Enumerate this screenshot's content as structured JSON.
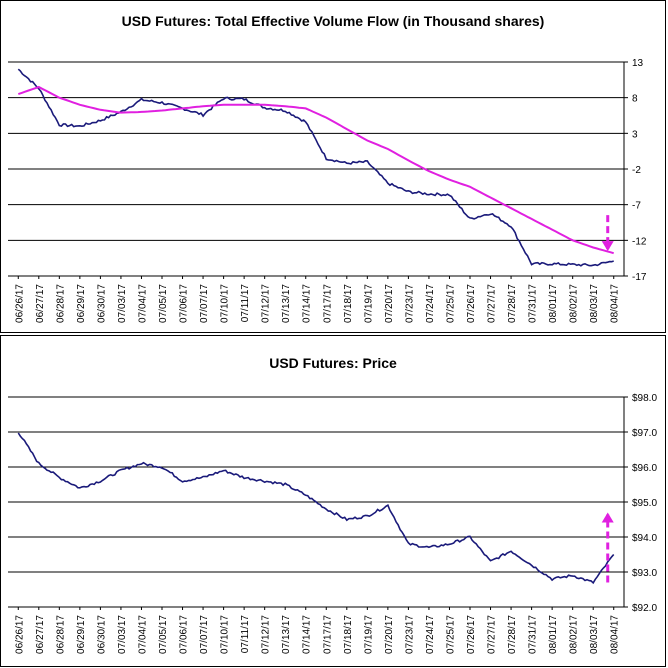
{
  "chart_data": [
    {
      "type": "line",
      "title": "USD Futures: Total Effective Volume Flow (in Thousand shares)",
      "x": [
        "06/26/17",
        "06/27/17",
        "06/28/17",
        "06/29/17",
        "06/30/17",
        "07/03/17",
        "07/04/17",
        "07/05/17",
        "07/06/17",
        "07/07/17",
        "07/10/17",
        "07/11/17",
        "07/12/17",
        "07/13/17",
        "07/14/17",
        "07/17/17",
        "07/18/17",
        "07/19/17",
        "07/20/17",
        "07/23/17",
        "07/24/17",
        "07/25/17",
        "07/26/17",
        "07/27/17",
        "07/28/17",
        "07/31/17",
        "08/01/17",
        "08/02/17",
        "08/03/17",
        "08/04/17"
      ],
      "ylim": [
        -17,
        13
      ],
      "y_ticks": [
        "13",
        "8",
        "3",
        "-2",
        "-7",
        "-12",
        "-17"
      ],
      "y_axis_position": "right",
      "grid": true,
      "series": [
        {
          "color": "#1a1a7a",
          "values": [
            12,
            9.3,
            4.2,
            4.0,
            4.8,
            6.0,
            7.7,
            7.3,
            6.5,
            5.6,
            7.9,
            7.8,
            6.6,
            6.2,
            4.6,
            -0.5,
            -1.2,
            -1.0,
            -4.0,
            -5.2,
            -5.5,
            -5.6,
            -9.0,
            -8.2,
            -10.0,
            -15.3,
            -15.3,
            -15.4,
            -15.5,
            -14.9
          ]
        },
        {
          "color": "#e020e0",
          "values": [
            8.5,
            9.5,
            8.0,
            7.0,
            6.3,
            5.9,
            6.0,
            6.2,
            6.5,
            6.8,
            7.0,
            7.0,
            7.0,
            6.8,
            6.5,
            5.2,
            3.6,
            2.0,
            0.8,
            -0.8,
            -2.3,
            -3.5,
            -4.5,
            -6.0,
            -7.5,
            -9.0,
            -10.5,
            -12.0,
            -13.0,
            -13.8
          ]
        }
      ],
      "annotations": [
        {
          "type": "arrow",
          "color": "#e020e0",
          "direction": "down",
          "at": "08/04/17"
        }
      ]
    },
    {
      "type": "line",
      "title": "USD Futures: Price",
      "x": [
        "06/26/17",
        "06/27/17",
        "06/28/17",
        "06/29/17",
        "06/30/17",
        "07/03/17",
        "07/04/17",
        "07/05/17",
        "07/06/17",
        "07/07/17",
        "07/10/17",
        "07/11/17",
        "07/12/17",
        "07/13/17",
        "07/14/17",
        "07/17/17",
        "07/18/17",
        "07/19/17",
        "07/20/17",
        "07/23/17",
        "07/24/17",
        "07/25/17",
        "07/26/17",
        "07/27/17",
        "07/28/17",
        "07/31/17",
        "08/01/17",
        "08/02/17",
        "08/03/17",
        "08/04/17"
      ],
      "ylim": [
        92.0,
        98.0
      ],
      "y_ticks": [
        "$98.0",
        "$97.0",
        "$96.0",
        "$95.0",
        "$94.0",
        "$93.0",
        "$92.0"
      ],
      "y_axis_position": "right",
      "grid": true,
      "series": [
        {
          "color": "#1a1a7a",
          "values": [
            97.0,
            96.1,
            95.7,
            95.4,
            95.6,
            95.9,
            96.1,
            96.0,
            95.6,
            95.7,
            95.9,
            95.7,
            95.6,
            95.5,
            95.2,
            94.8,
            94.5,
            94.6,
            94.9,
            93.8,
            93.7,
            93.8,
            94.0,
            93.3,
            93.6,
            93.2,
            92.8,
            92.9,
            92.7,
            93.5
          ]
        }
      ],
      "annotations": [
        {
          "type": "arrow",
          "color": "#e020e0",
          "direction": "up",
          "at": "08/04/17"
        }
      ]
    }
  ]
}
